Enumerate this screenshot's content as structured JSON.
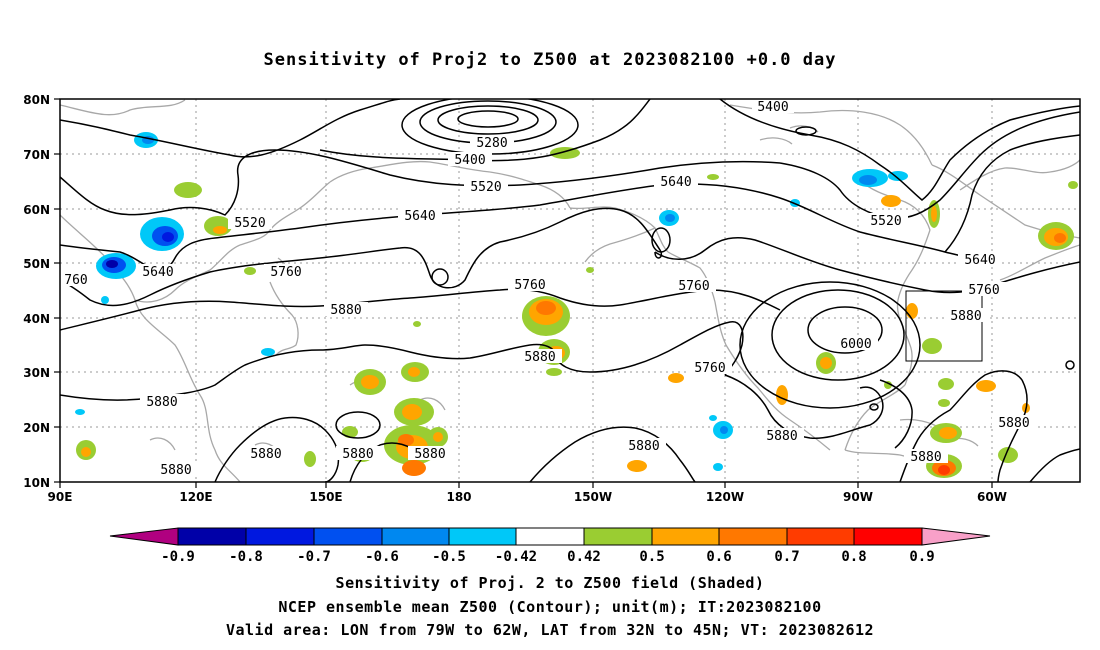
{
  "title": "Sensitivity of Proj2 to Z500 at 2023082100 +0.0 day",
  "lat_labels": [
    "80N",
    "70N",
    "60N",
    "50N",
    "40N",
    "30N",
    "20N",
    "10N"
  ],
  "lon_labels": [
    "90E",
    "120E",
    "150E",
    "180",
    "150W",
    "120W",
    "90W",
    "60W"
  ],
  "contour_labels": {
    "c5400_a": "5400",
    "c5400_b": "5400",
    "c5280": "5280",
    "c5520_a": "5520",
    "c5520_b": "5520",
    "c5520_c": "5520",
    "c5640_a": "5640",
    "c5640_b": "5640",
    "c5640_c": "5640",
    "c5640_d": "5640",
    "c5760_a": "760",
    "c5760_b": "5760",
    "c5760_c": "5760",
    "c5760_d": "5760",
    "c5760_e": "5760",
    "c5760_f": "5760",
    "c5880_a": "5880",
    "c5880_b": "5880",
    "c5880_c": "5880",
    "c5880_d": "5880",
    "c5880_e": "5880",
    "c5880_f": "5880",
    "c5880_g": "5880",
    "c5880_h": "5880",
    "c5880_i": "5880",
    "c5880_j": "5880",
    "c5880_k": "5880",
    "c5880_l": "5880",
    "c6000": "6000"
  },
  "colorbar": {
    "labels": [
      "-0.9",
      "-0.8",
      "-0.7",
      "-0.6",
      "-0.5",
      "-0.42",
      "0.42",
      "0.5",
      "0.6",
      "0.7",
      "0.8",
      "0.9"
    ],
    "colors": [
      "#b00080",
      "#0000a8",
      "#0018e0",
      "#0050f0",
      "#0088f0",
      "#00c8f8",
      "#ffffff",
      "#9acd32",
      "#ffa500",
      "#ff7800",
      "#ff3c00",
      "#ff0000",
      "#f8a0c8"
    ]
  },
  "captions": {
    "line1": "Sensitivity of Proj. 2 to Z500 field (Shaded)",
    "line2": "NCEP ensemble mean Z500 (Contour); unit(m); IT:2023082100",
    "line3": "Valid area: LON from 79W to 62W, LAT from 32N to 45N; VT: 2023082612"
  }
}
